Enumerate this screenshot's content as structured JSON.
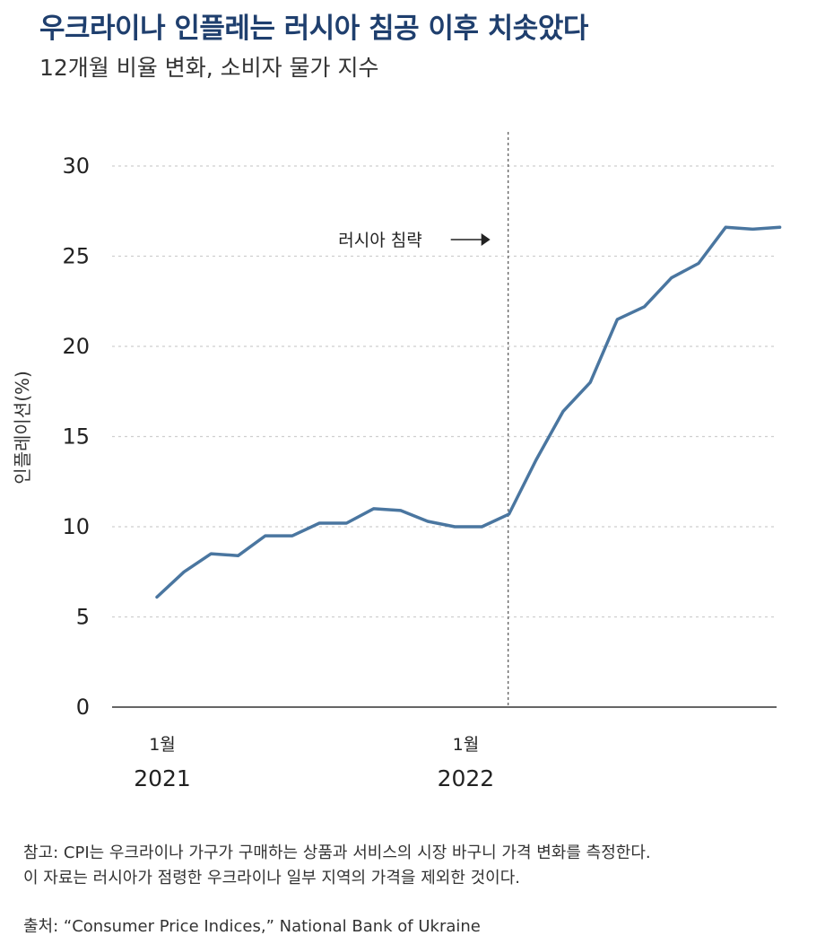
{
  "header": {
    "title": "우크라이나 인플레는 러시아 침공 이후 치솟았다",
    "subtitle": "12개월 비율 변화, 소비자 물가 지수"
  },
  "chart_data": {
    "type": "line",
    "ylabel": "인플레이션(%)",
    "xlabel": "",
    "ylim": [
      0,
      30
    ],
    "yticks": [
      0,
      5,
      10,
      15,
      20,
      25,
      30
    ],
    "grid": true,
    "x_tick_labels": [
      {
        "month": "1월",
        "year": "2021",
        "index": 0
      },
      {
        "month": "1월",
        "year": "2022",
        "index": 12
      }
    ],
    "series": [
      {
        "color": "#4a76a0",
        "values": [
          6.1,
          7.5,
          8.5,
          8.4,
          9.5,
          9.5,
          10.2,
          10.2,
          11.0,
          10.9,
          10.3,
          10.0,
          10.0,
          10.7,
          13.7,
          16.4,
          18.0,
          21.5,
          22.2,
          23.8,
          24.6,
          26.6,
          26.5,
          26.6
        ]
      }
    ],
    "annotation": {
      "label": "러시아 침략",
      "at_index": 12.97
    },
    "line_color": "#4a76a0"
  },
  "footer": {
    "note_line1": "참고: CPI는 우크라이나 가구가 구매하는 상품과 서비스의 시장 바구니 가격 변화를 측정한다.",
    "note_line2": "이 자료는 러시아가 점령한 우크라이나 일부 지역의 가격을 제외한 것이다.",
    "source": "출처: “Consumer Price Indices,” National Bank of Ukraine"
  }
}
